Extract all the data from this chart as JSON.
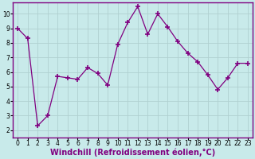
{
  "x": [
    0,
    1,
    2,
    3,
    4,
    5,
    6,
    7,
    8,
    9,
    10,
    11,
    12,
    13,
    14,
    15,
    16,
    17,
    18,
    19,
    20,
    21,
    22,
    23
  ],
  "y": [
    9.0,
    8.3,
    2.3,
    3.0,
    5.7,
    5.6,
    5.5,
    6.3,
    5.9,
    5.1,
    7.9,
    9.4,
    10.5,
    8.6,
    10.0,
    9.1,
    8.1,
    7.3,
    6.7,
    5.8,
    4.8,
    5.6,
    6.6,
    6.6
  ],
  "line_color": "#800080",
  "marker": "+",
  "marker_size": 4,
  "marker_lw": 1.2,
  "bg_color": "#c8eaea",
  "grid_color": "#b0d0d0",
  "xlabel": "Windchill (Refroidissement éolien,°C)",
  "xlabel_color": "#800080",
  "ylim": [
    1.5,
    10.8
  ],
  "xlim": [
    -0.5,
    23.5
  ],
  "yticks": [
    2,
    3,
    4,
    5,
    6,
    7,
    8,
    9,
    10
  ],
  "xticks": [
    0,
    1,
    2,
    3,
    4,
    5,
    6,
    7,
    8,
    9,
    10,
    11,
    12,
    13,
    14,
    15,
    16,
    17,
    18,
    19,
    20,
    21,
    22,
    23
  ],
  "tick_fontsize": 5.5,
  "xlabel_fontsize": 7.0,
  "spine_color": "#800080",
  "axis_bg": "#c8eaea"
}
